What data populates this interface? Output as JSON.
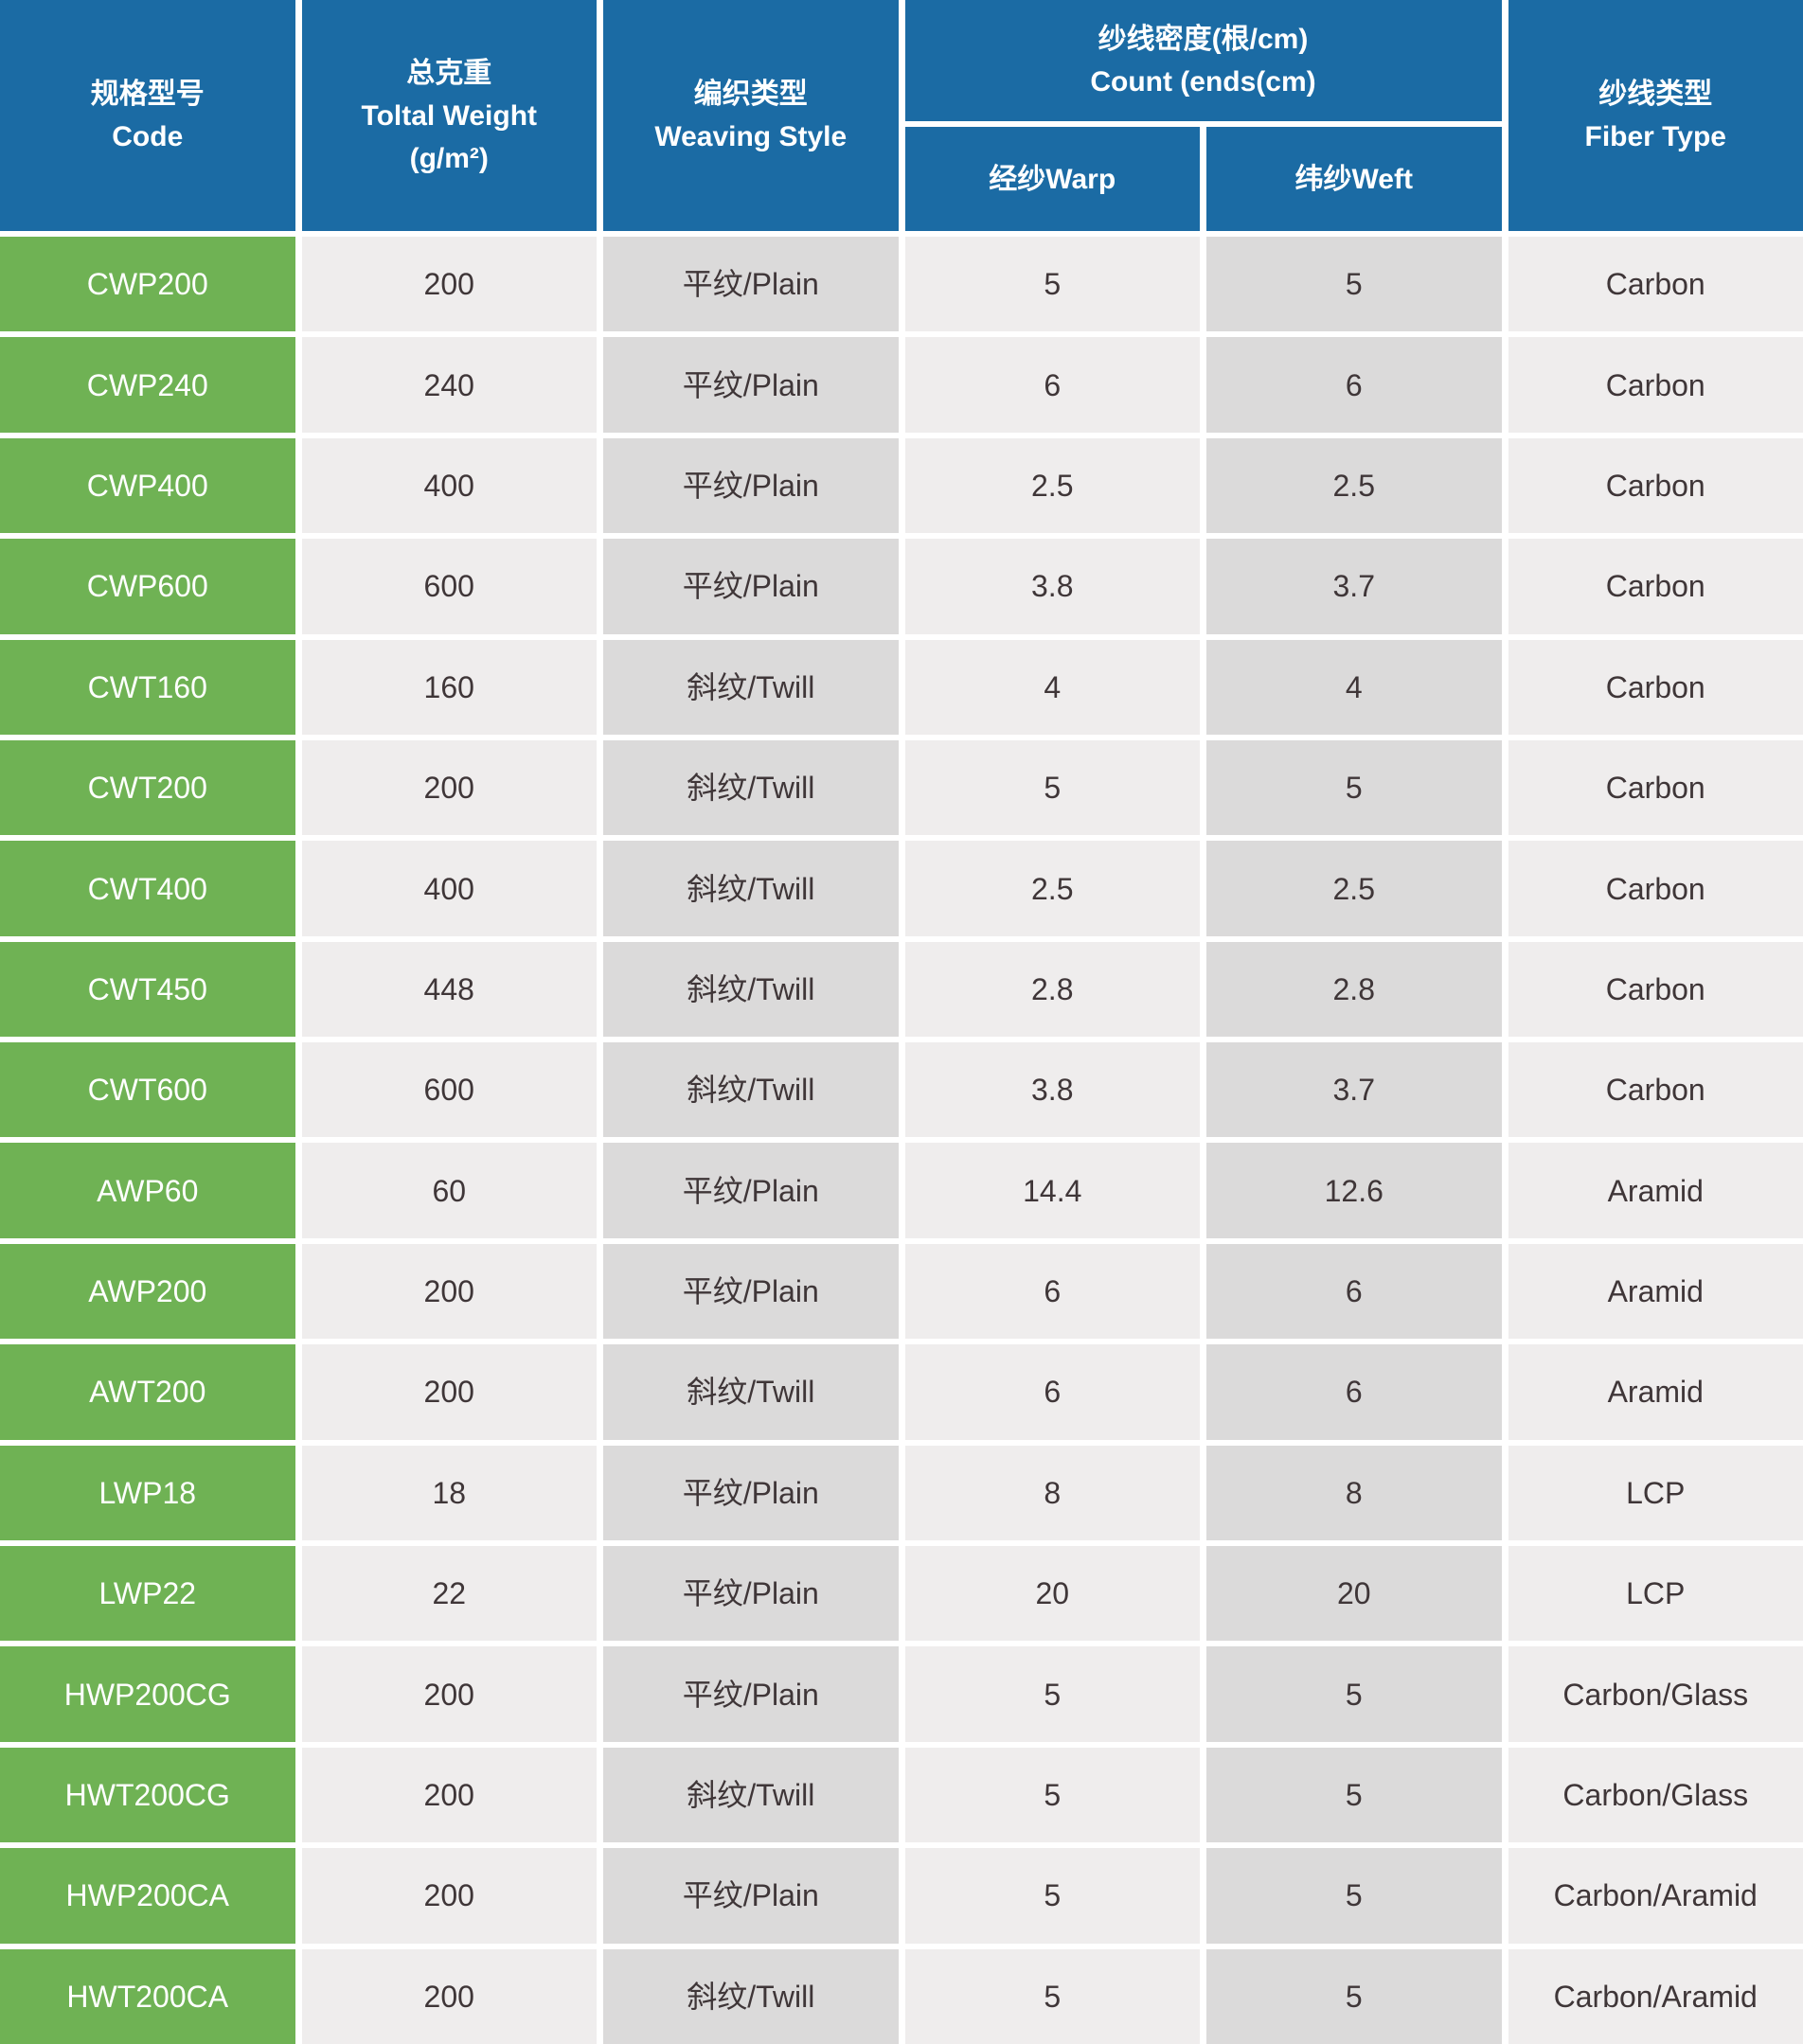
{
  "colors": {
    "header_blue": "#1B6BA4",
    "code_green": "#6FB254",
    "cell_light": "#EFEDED",
    "cell_dark": "#DBDADA",
    "header_text": "#FFFFFF",
    "cell_text": "#3F3638",
    "separator_white": "#FFFFFF"
  },
  "chart_data": {
    "type": "table",
    "header": {
      "code_zh": "规格型号",
      "code_en": "Code",
      "weight_zh": "总克重",
      "weight_en": "Toltal Weight",
      "weight_unit": "(g/m²)",
      "weaving_zh": "编织类型",
      "weaving_en": "Weaving Style",
      "count_zh": "纱线密度(根/cm)",
      "count_en": "Count (ends(cm)",
      "warp": "经纱Warp",
      "weft": "纬纱Weft",
      "fiber_zh": "纱线类型",
      "fiber_en": "Fiber Type"
    },
    "rows": [
      {
        "code": "CWP200",
        "weight": "200",
        "weaving": "平纹/Plain",
        "warp": "5",
        "weft": "5",
        "fiber": "Carbon"
      },
      {
        "code": "CWP240",
        "weight": "240",
        "weaving": "平纹/Plain",
        "warp": "6",
        "weft": "6",
        "fiber": "Carbon"
      },
      {
        "code": "CWP400",
        "weight": "400",
        "weaving": "平纹/Plain",
        "warp": "2.5",
        "weft": "2.5",
        "fiber": "Carbon"
      },
      {
        "code": "CWP600",
        "weight": "600",
        "weaving": "平纹/Plain",
        "warp": "3.8",
        "weft": "3.7",
        "fiber": "Carbon"
      },
      {
        "code": "CWT160",
        "weight": "160",
        "weaving": "斜纹/Twill",
        "warp": "4",
        "weft": "4",
        "fiber": "Carbon"
      },
      {
        "code": "CWT200",
        "weight": "200",
        "weaving": "斜纹/Twill",
        "warp": "5",
        "weft": "5",
        "fiber": "Carbon"
      },
      {
        "code": "CWT400",
        "weight": "400",
        "weaving": "斜纹/Twill",
        "warp": "2.5",
        "weft": "2.5",
        "fiber": "Carbon"
      },
      {
        "code": "CWT450",
        "weight": "448",
        "weaving": "斜纹/Twill",
        "warp": "2.8",
        "weft": "2.8",
        "fiber": "Carbon"
      },
      {
        "code": "CWT600",
        "weight": "600",
        "weaving": "斜纹/Twill",
        "warp": "3.8",
        "weft": "3.7",
        "fiber": "Carbon"
      },
      {
        "code": "AWP60",
        "weight": "60",
        "weaving": "平纹/Plain",
        "warp": "14.4",
        "weft": "12.6",
        "fiber": "Aramid"
      },
      {
        "code": "AWP200",
        "weight": "200",
        "weaving": "平纹/Plain",
        "warp": "6",
        "weft": "6",
        "fiber": "Aramid"
      },
      {
        "code": "AWT200",
        "weight": "200",
        "weaving": "斜纹/Twill",
        "warp": "6",
        "weft": "6",
        "fiber": "Aramid"
      },
      {
        "code": "LWP18",
        "weight": "18",
        "weaving": "平纹/Plain",
        "warp": "8",
        "weft": "8",
        "fiber": "LCP"
      },
      {
        "code": "LWP22",
        "weight": "22",
        "weaving": "平纹/Plain",
        "warp": "20",
        "weft": "20",
        "fiber": "LCP"
      },
      {
        "code": "HWP200CG",
        "weight": "200",
        "weaving": "平纹/Plain",
        "warp": "5",
        "weft": "5",
        "fiber": "Carbon/Glass"
      },
      {
        "code": "HWT200CG",
        "weight": "200",
        "weaving": "斜纹/Twill",
        "warp": "5",
        "weft": "5",
        "fiber": "Carbon/Glass"
      },
      {
        "code": "HWP200CA",
        "weight": "200",
        "weaving": "平纹/Plain",
        "warp": "5",
        "weft": "5",
        "fiber": "Carbon/Aramid"
      },
      {
        "code": "HWT200CA",
        "weight": "200",
        "weaving": "斜纹/Twill",
        "warp": "5",
        "weft": "5",
        "fiber": "Carbon/Aramid"
      }
    ]
  }
}
